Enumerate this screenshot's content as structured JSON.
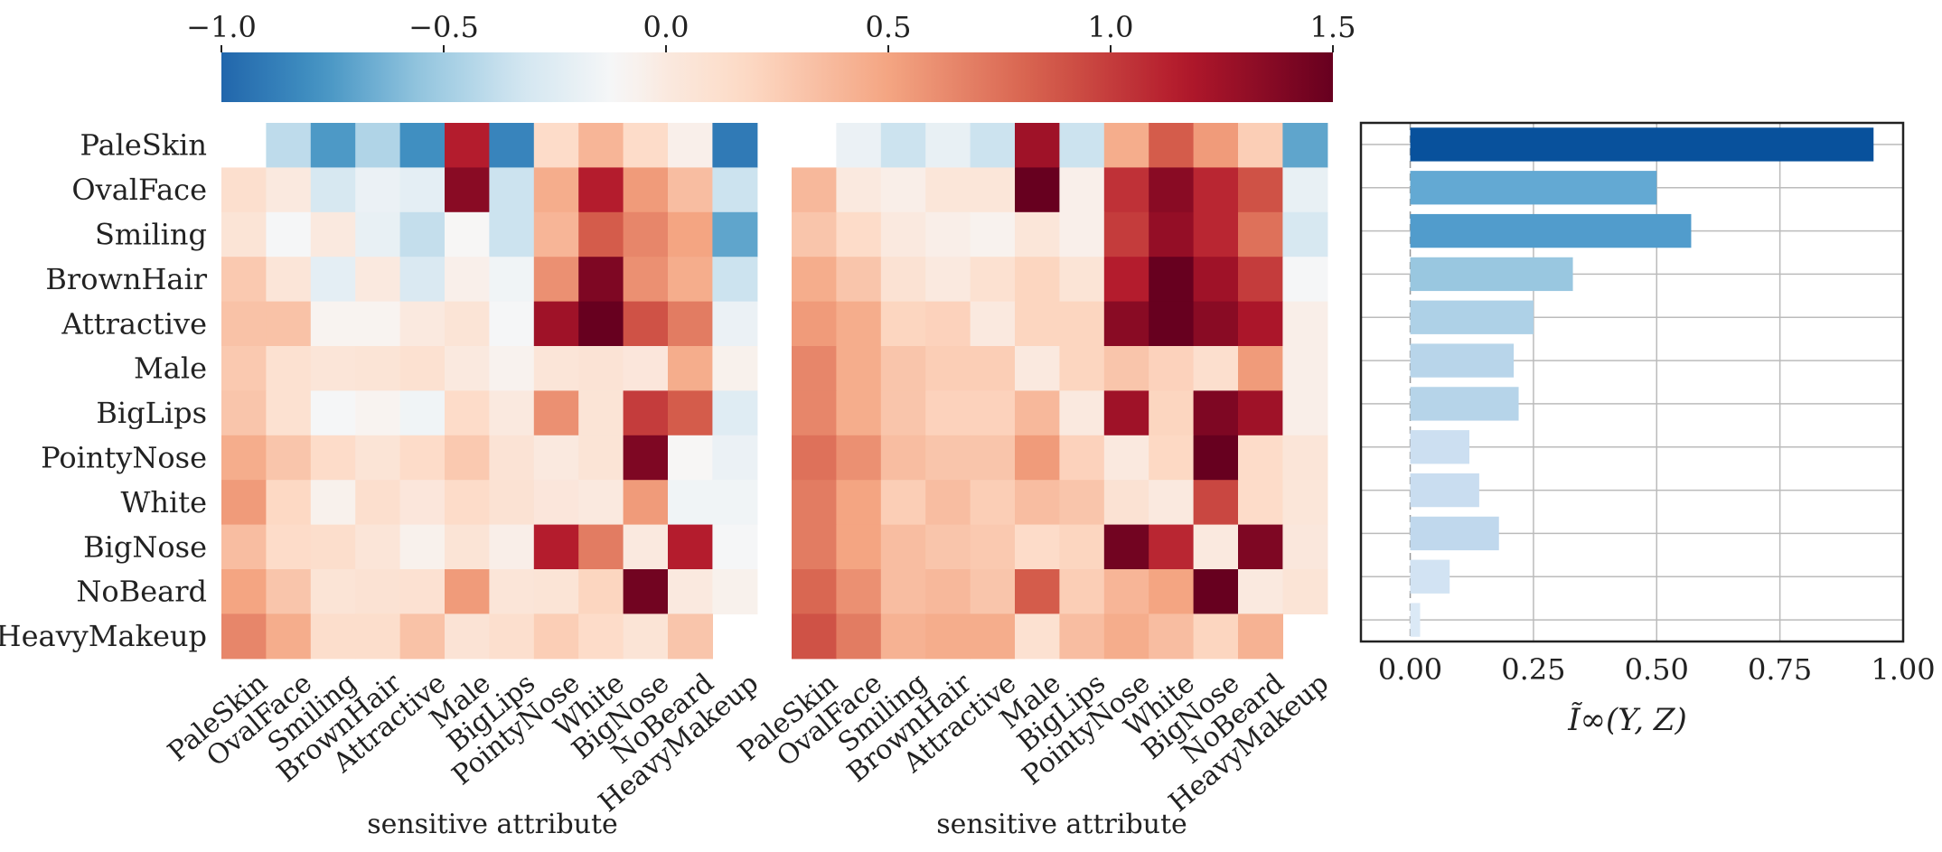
{
  "chart_data": [
    {
      "type": "colorbar",
      "ticks": [
        "−1.0",
        "−0.5",
        "0.0",
        "0.5",
        "1.0",
        "1.5"
      ],
      "range": [
        -1.0,
        1.5
      ]
    },
    {
      "type": "heatmap",
      "rows": [
        "PaleSkin",
        "OvalFace",
        "Smiling",
        "BrownHair",
        "Attractive",
        "Male",
        "BigLips",
        "PointyNose",
        "White",
        "BigNose",
        "NoBeard",
        "HeavyMakeup"
      ],
      "cols": [
        "PaleSkin",
        "OvalFace",
        "Smiling",
        "BrownHair",
        "Attractive",
        "Male",
        "BigLips",
        "PointyNose",
        "White",
        "BigNose",
        "NoBeard",
        "HeavyMakeup"
      ],
      "xlabel": "sensitive attribute",
      "values": [
        [
          null,
          -0.4,
          -0.75,
          -0.45,
          -0.8,
          1.15,
          -0.85,
          0.15,
          0.4,
          0.15,
          -0.05,
          -0.9
        ],
        [
          0.12,
          0.0,
          -0.3,
          -0.18,
          -0.22,
          1.35,
          -0.35,
          0.45,
          1.15,
          0.55,
          0.35,
          -0.35
        ],
        [
          0.06,
          -0.12,
          0.0,
          -0.2,
          -0.38,
          -0.1,
          -0.35,
          0.4,
          0.85,
          0.65,
          0.5,
          -0.7
        ],
        [
          0.28,
          0.05,
          -0.22,
          0.0,
          -0.28,
          -0.05,
          -0.15,
          0.6,
          1.4,
          0.6,
          0.45,
          -0.35
        ],
        [
          0.32,
          0.32,
          -0.08,
          -0.08,
          0.0,
          0.06,
          -0.12,
          1.25,
          1.5,
          0.9,
          0.7,
          -0.18
        ],
        [
          0.28,
          0.1,
          0.05,
          0.06,
          0.1,
          0.0,
          -0.07,
          0.05,
          0.07,
          0.03,
          0.45,
          -0.06
        ],
        [
          0.3,
          0.1,
          -0.12,
          -0.08,
          -0.15,
          0.15,
          0.0,
          0.6,
          0.06,
          1.0,
          0.85,
          -0.25
        ],
        [
          0.45,
          0.3,
          0.15,
          0.06,
          0.15,
          0.28,
          0.07,
          0.0,
          0.06,
          1.4,
          -0.1,
          -0.18
        ],
        [
          0.55,
          0.18,
          -0.06,
          0.12,
          0.03,
          0.15,
          0.08,
          0.03,
          0.0,
          0.55,
          -0.15,
          -0.15
        ],
        [
          0.35,
          0.15,
          0.13,
          0.05,
          -0.06,
          0.06,
          -0.04,
          1.15,
          0.7,
          0.0,
          1.15,
          -0.12
        ],
        [
          0.5,
          0.3,
          0.06,
          0.08,
          0.09,
          0.55,
          0.05,
          0.06,
          0.2,
          1.45,
          0.0,
          -0.06
        ],
        [
          0.65,
          0.45,
          0.13,
          0.13,
          0.32,
          0.07,
          0.12,
          0.25,
          0.15,
          0.06,
          0.3,
          null
        ]
      ]
    },
    {
      "type": "heatmap",
      "rows": [
        "PaleSkin",
        "OvalFace",
        "Smiling",
        "BrownHair",
        "Attractive",
        "Male",
        "BigLips",
        "PointyNose",
        "White",
        "BigNose",
        "NoBeard",
        "HeavyMakeup"
      ],
      "cols": [
        "PaleSkin",
        "OvalFace",
        "Smiling",
        "BrownHair",
        "Attractive",
        "Male",
        "BigLips",
        "PointyNose",
        "White",
        "BigNose",
        "NoBeard",
        "HeavyMakeup"
      ],
      "xlabel": "sensitive attribute",
      "values": [
        [
          null,
          -0.18,
          -0.35,
          -0.2,
          -0.35,
          1.25,
          -0.35,
          0.45,
          0.85,
          0.55,
          0.25,
          -0.7
        ],
        [
          0.38,
          0.0,
          -0.04,
          0.04,
          0.04,
          1.5,
          -0.05,
          1.05,
          1.35,
          1.1,
          0.9,
          -0.2
        ],
        [
          0.3,
          0.15,
          0.0,
          -0.04,
          -0.07,
          0.04,
          -0.05,
          1.0,
          1.3,
          1.1,
          0.75,
          -0.3
        ],
        [
          0.45,
          0.3,
          0.08,
          0.0,
          0.1,
          0.2,
          0.06,
          1.15,
          1.5,
          1.25,
          1.0,
          -0.12
        ],
        [
          0.55,
          0.45,
          0.2,
          0.22,
          0.0,
          0.2,
          0.2,
          1.35,
          1.5,
          1.35,
          1.2,
          -0.04
        ],
        [
          0.65,
          0.45,
          0.3,
          0.25,
          0.25,
          0.0,
          0.2,
          0.3,
          0.22,
          0.12,
          0.55,
          -0.04
        ],
        [
          0.65,
          0.45,
          0.3,
          0.22,
          0.22,
          0.38,
          0.0,
          1.25,
          0.2,
          1.4,
          1.25,
          -0.04
        ],
        [
          0.75,
          0.6,
          0.35,
          0.3,
          0.3,
          0.55,
          0.22,
          0.0,
          0.18,
          1.5,
          0.15,
          0.05
        ],
        [
          0.7,
          0.5,
          0.25,
          0.35,
          0.25,
          0.35,
          0.3,
          0.08,
          0.0,
          0.95,
          0.15,
          0.04
        ],
        [
          0.7,
          0.5,
          0.35,
          0.3,
          0.28,
          0.15,
          0.2,
          1.45,
          1.1,
          0.0,
          1.4,
          0.02
        ],
        [
          0.8,
          0.6,
          0.35,
          0.38,
          0.3,
          0.85,
          0.25,
          0.4,
          0.5,
          1.5,
          0.0,
          0.06
        ],
        [
          0.9,
          0.7,
          0.42,
          0.45,
          0.45,
          0.1,
          0.35,
          0.45,
          0.35,
          0.2,
          0.42,
          null
        ]
      ]
    },
    {
      "type": "bar",
      "orientation": "horizontal",
      "categories": [
        "PaleSkin",
        "OvalFace",
        "Smiling",
        "BrownHair",
        "Attractive",
        "Male",
        "BigLips",
        "PointyNose",
        "White",
        "BigNose",
        "NoBeard",
        "HeavyMakeup"
      ],
      "values": [
        0.94,
        0.5,
        0.57,
        0.33,
        0.25,
        0.21,
        0.22,
        0.12,
        0.14,
        0.18,
        0.08,
        0.02
      ],
      "xticks": [
        "0.00",
        "0.25",
        "0.50",
        "0.75",
        "1.00"
      ],
      "xlim": [
        -0.1,
        1.0
      ],
      "xlabel": "Ĩ∞(Y, Z)",
      "grid": true
    }
  ]
}
